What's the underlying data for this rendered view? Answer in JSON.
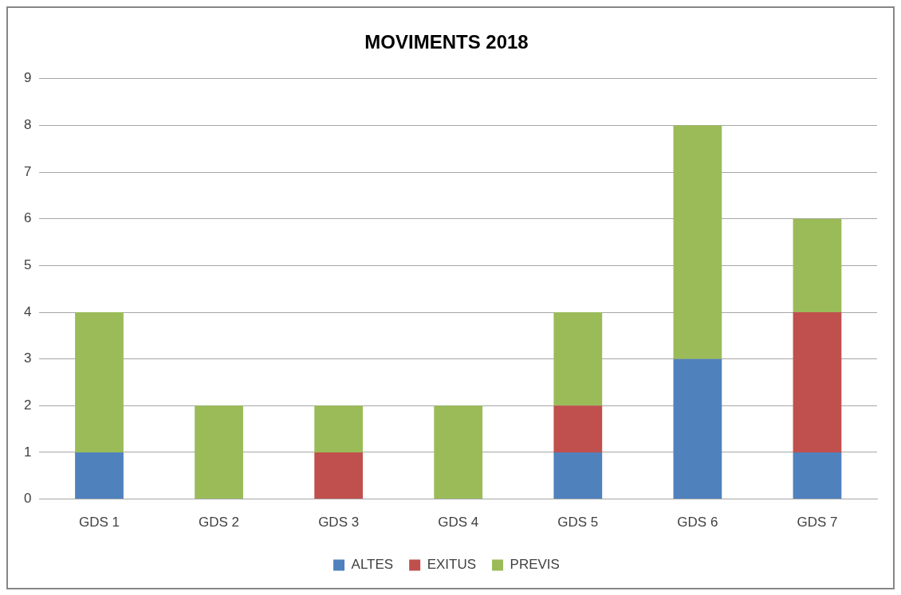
{
  "chart_data": {
    "type": "bar",
    "title": "MOVIMENTS 2018",
    "categories": [
      "GDS 1",
      "GDS 2",
      "GDS 3",
      "GDS 4",
      "GDS 5",
      "GDS 6",
      "GDS 7"
    ],
    "series": [
      {
        "name": "ALTES",
        "color": "#4f81bd",
        "values": [
          1,
          0,
          0,
          0,
          1,
          3,
          1
        ]
      },
      {
        "name": "EXITUS",
        "color": "#c0504d",
        "values": [
          0,
          0,
          1,
          0,
          1,
          0,
          3
        ]
      },
      {
        "name": "PREVIS",
        "color": "#9bbb59",
        "values": [
          3,
          2,
          1,
          2,
          2,
          5,
          2
        ]
      }
    ],
    "stacked": true,
    "ylim": [
      0,
      9
    ],
    "yticks": [
      0,
      1,
      2,
      3,
      4,
      5,
      6,
      7,
      8,
      9
    ],
    "grid": "y",
    "legend": "bottom"
  }
}
